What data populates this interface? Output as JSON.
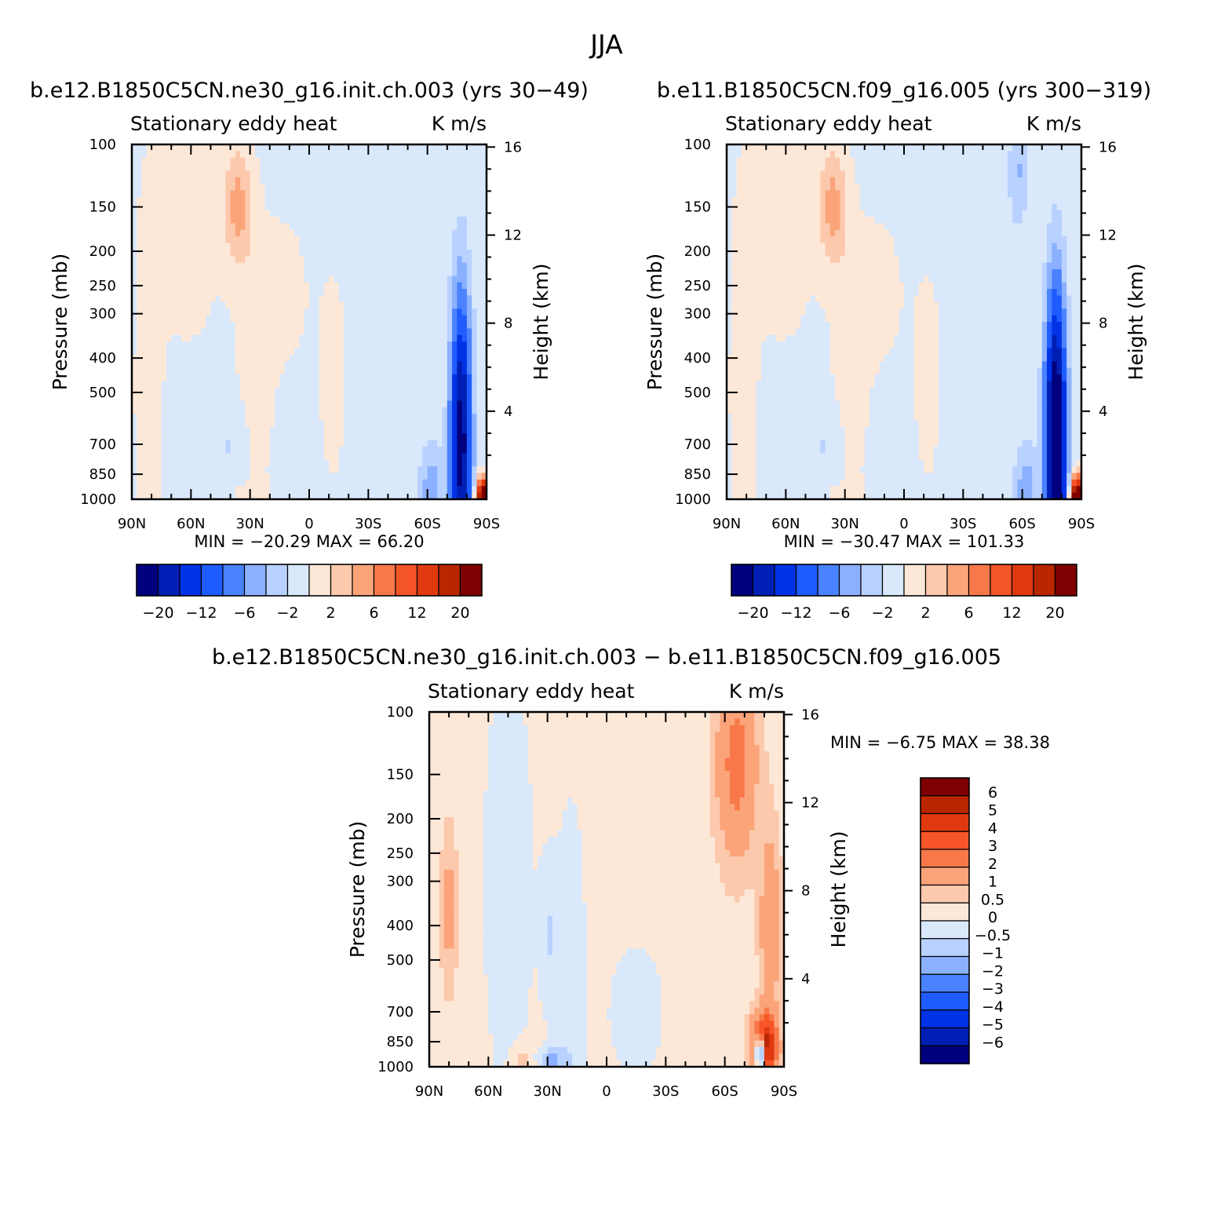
{
  "figure_title": "JJA",
  "colors": {
    "cold": [
      "#00007f",
      "#0020b5",
      "#0033e6",
      "#1f5cff",
      "#4a82ff",
      "#8ab0ff",
      "#b8d1ff",
      "#d9e8fb"
    ],
    "warm": [
      "#fde8d8",
      "#fcc9ad",
      "#fba47a",
      "#f8784a",
      "#f65527",
      "#e0390f",
      "#b92600",
      "#7f0000"
    ]
  },
  "chart_data": [
    {
      "type": "heatmap",
      "panel": "left",
      "title": "b.e12.B1850C5CN.ne30_g16.init.ch.003 (yrs 30-49)",
      "left_string": "Stationary eddy heat",
      "right_string": "K m/s",
      "xlabel": "",
      "ylabel": "Pressure (mb)",
      "y2label": "Height (km)",
      "x_ticks": [
        "90N",
        "60N",
        "30N",
        "0",
        "30S",
        "60S",
        "90S"
      ],
      "y_ticks": [
        "100",
        "150",
        "200",
        "250",
        "300",
        "400",
        "500",
        "700",
        "850",
        "1000"
      ],
      "y2_ticks": [
        "16",
        "12",
        "8",
        "4"
      ],
      "xlim": [
        "90N",
        "90S"
      ],
      "ylim": [
        1000,
        100
      ],
      "y_scale": "log",
      "min_max_text": "MIN = -20.29   MAX = 66.20",
      "min": -20.29,
      "max": 66.2,
      "colorbar": {
        "orientation": "horizontal",
        "levels": [
          -24,
          -20,
          -16,
          -12,
          -9,
          -6,
          -4,
          -2,
          0,
          2,
          4,
          6,
          9,
          12,
          16,
          20,
          24
        ],
        "tick_labels": [
          "-20",
          "-12",
          "-6",
          "-2",
          "2",
          "6",
          "12",
          "20"
        ]
      }
    },
    {
      "type": "heatmap",
      "panel": "right",
      "title": "b.e11.B1850C5CN.f09_g16.005 (yrs 300-319)",
      "left_string": "Stationary eddy heat",
      "right_string": "K m/s",
      "xlabel": "",
      "ylabel": "Pressure (mb)",
      "y2label": "Height (km)",
      "x_ticks": [
        "90N",
        "60N",
        "30N",
        "0",
        "30S",
        "60S",
        "90S"
      ],
      "y_ticks": [
        "100",
        "150",
        "200",
        "250",
        "300",
        "400",
        "500",
        "700",
        "850",
        "1000"
      ],
      "y2_ticks": [
        "16",
        "12",
        "8",
        "4"
      ],
      "xlim": [
        "90N",
        "90S"
      ],
      "ylim": [
        1000,
        100
      ],
      "y_scale": "log",
      "min_max_text": "MIN = -30.47   MAX = 101.33",
      "min": -30.47,
      "max": 101.33,
      "colorbar": {
        "orientation": "horizontal",
        "levels": [
          -24,
          -20,
          -16,
          -12,
          -9,
          -6,
          -4,
          -2,
          0,
          2,
          4,
          6,
          9,
          12,
          16,
          20,
          24
        ],
        "tick_labels": [
          "-20",
          "-12",
          "-6",
          "-2",
          "2",
          "6",
          "12",
          "20"
        ]
      }
    },
    {
      "type": "heatmap",
      "panel": "bottom",
      "title": "b.e12.B1850C5CN.ne30_g16.init.ch.003 - b.e11.B1850C5CN.f09_g16.005",
      "left_string": "Stationary eddy heat",
      "right_string": "K m/s",
      "xlabel": "",
      "ylabel": "Pressure (mb)",
      "y2label": "Height (km)",
      "x_ticks": [
        "90N",
        "60N",
        "30N",
        "0",
        "30S",
        "60S",
        "90S"
      ],
      "y_ticks": [
        "100",
        "150",
        "200",
        "250",
        "300",
        "400",
        "500",
        "700",
        "850",
        "1000"
      ],
      "y2_ticks": [
        "16",
        "12",
        "8",
        "4"
      ],
      "xlim": [
        "90N",
        "90S"
      ],
      "ylim": [
        1000,
        100
      ],
      "y_scale": "log",
      "min_max_text": "MIN = -6.75   MAX = 38.38",
      "min": -6.75,
      "max": 38.38,
      "colorbar": {
        "orientation": "vertical",
        "levels": [
          -6,
          -5,
          -4,
          -3,
          -2,
          -1,
          -0.5,
          0,
          0.5,
          1,
          2,
          3,
          4,
          5,
          6
        ],
        "tick_labels": [
          "6",
          "5",
          "4",
          "3",
          "2",
          "1",
          "0.5",
          "0",
          "-0.5",
          "-1",
          "-2",
          "-3",
          "-4",
          "-5",
          "-6"
        ]
      }
    }
  ]
}
